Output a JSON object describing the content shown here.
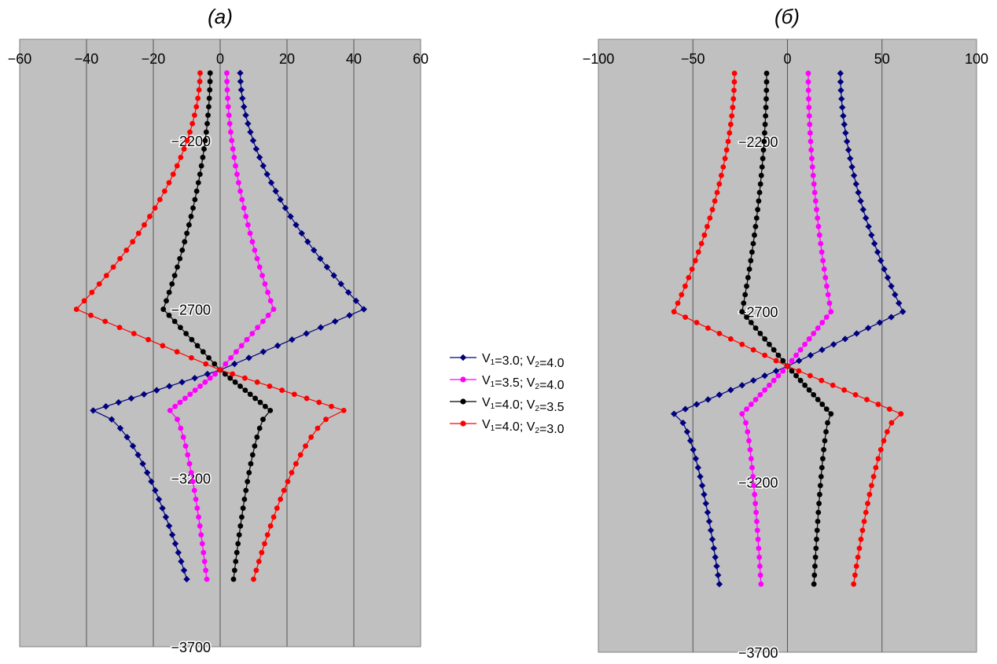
{
  "legend": [
    {
      "v1": "3.0",
      "v2": "4.0",
      "color": "#00007f",
      "marker": "diamond"
    },
    {
      "v1": "3.5",
      "v2": "4.0",
      "color": "#ff00ff",
      "marker": "circle"
    },
    {
      "v1": "4.0",
      "v2": "3.5",
      "color": "#000000",
      "marker": "circle"
    },
    {
      "v1": "4.0",
      "v2": "3.0",
      "color": "#ff0000",
      "marker": "circle"
    }
  ],
  "chart_data": [
    {
      "type": "line",
      "title": "(а)",
      "xlim": [
        -60,
        60
      ],
      "xticks": [
        -60,
        -40,
        -20,
        0,
        20,
        40,
        60
      ],
      "ylim": [
        -3700,
        -1900
      ],
      "yticks": [
        -2200,
        -2700,
        -3200,
        -3700
      ],
      "vertical_grid": [
        -40,
        -20,
        0,
        20,
        40
      ],
      "plot_background": "#c0c0c0",
      "series_shape": [
        {
          "y_top": -2000,
          "x_top": 6,
          "y_peak": -2700,
          "x_peak": 43,
          "y_mid": -2880,
          "x_mid": 0,
          "y_trough": -3000,
          "x_trough": -38,
          "y_bottom": -3500,
          "x_bottom": -10
        },
        {
          "y_top": -2000,
          "x_top": 2,
          "y_peak": -2700,
          "x_peak": 16,
          "y_mid": -2880,
          "x_mid": 0,
          "y_trough": -3000,
          "x_trough": -15,
          "y_bottom": -3500,
          "x_bottom": -4
        },
        {
          "y_top": -2000,
          "x_top": -3,
          "y_peak": -2700,
          "x_peak": -17,
          "y_mid": -2880,
          "x_mid": 0,
          "y_trough": -3000,
          "x_trough": 15,
          "y_bottom": -3500,
          "x_bottom": 4
        },
        {
          "y_top": -2000,
          "x_top": -6,
          "y_peak": -2700,
          "x_peak": -43,
          "y_mid": -2880,
          "x_mid": 0,
          "y_trough": -3000,
          "x_trough": 37,
          "y_bottom": -3500,
          "x_bottom": 10
        }
      ]
    },
    {
      "type": "line",
      "title": "(б)",
      "xlim": [
        -100,
        100
      ],
      "xticks": [
        -100,
        -50,
        0,
        50,
        100
      ],
      "ylim": [
        -3700,
        -1900
      ],
      "yticks": [
        -2200,
        -2700,
        -3200,
        -3700
      ],
      "vertical_grid": [
        -50,
        0,
        50
      ],
      "plot_background": "#c0c0c0",
      "series_shape": [
        {
          "y_top": -2000,
          "x_top": 28,
          "y_peak": -2700,
          "x_peak": 61,
          "y_mid": -2860,
          "x_mid": 0,
          "y_trough": -3000,
          "x_trough": -60,
          "y_bottom": -3500,
          "x_bottom": -36
        },
        {
          "y_top": -2000,
          "x_top": 11,
          "y_peak": -2700,
          "x_peak": 23,
          "y_mid": -2860,
          "x_mid": 0,
          "y_trough": -3000,
          "x_trough": -24,
          "y_bottom": -3500,
          "x_bottom": -14
        },
        {
          "y_top": -2000,
          "x_top": -11,
          "y_peak": -2700,
          "x_peak": -24,
          "y_mid": -2860,
          "x_mid": 0,
          "y_trough": -3000,
          "x_trough": 23,
          "y_bottom": -3500,
          "x_bottom": 14
        },
        {
          "y_top": -2000,
          "x_top": -28,
          "y_peak": -2700,
          "x_peak": -60,
          "y_mid": -2860,
          "x_mid": 0,
          "y_trough": -3000,
          "x_trough": 60,
          "y_bottom": -3500,
          "x_bottom": 35
        }
      ]
    }
  ]
}
